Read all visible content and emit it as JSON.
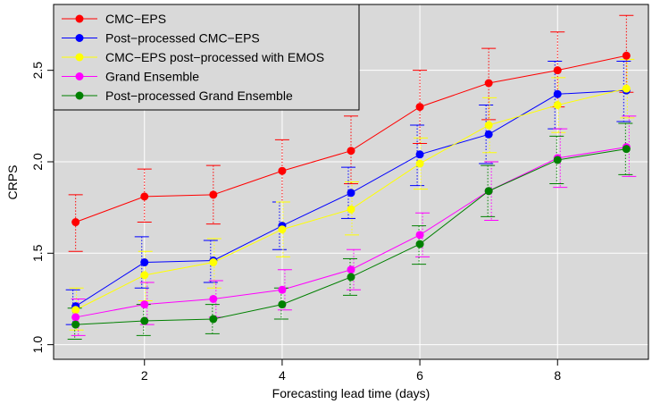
{
  "chart_data": {
    "type": "line",
    "title": "",
    "xlabel": "Forecasting lead time (days)",
    "ylabel": "CRPS",
    "xlim": [
      0.68,
      9.32
    ],
    "ylim": [
      0.92,
      2.86
    ],
    "x_ticks": [
      2,
      4,
      6,
      8
    ],
    "y_ticks": [
      1.0,
      1.5,
      2.0,
      2.5
    ],
    "x_tick_labels": [
      "2",
      "4",
      "6",
      "8"
    ],
    "y_tick_labels": [
      "1.0",
      "1.5",
      "2.0",
      "2.5"
    ],
    "grid": true,
    "background": "#d9d9d9",
    "legend_position": "top-left",
    "x": [
      1,
      2,
      3,
      4,
      5,
      6,
      7,
      8,
      9
    ],
    "series": [
      {
        "name": "CMC−EPS",
        "color": "#ff0000",
        "values": [
          1.67,
          1.81,
          1.82,
          1.95,
          2.06,
          2.3,
          2.43,
          2.5,
          2.58
        ],
        "lower": [
          1.51,
          1.67,
          1.66,
          1.78,
          1.88,
          2.1,
          2.23,
          2.3,
          2.38
        ],
        "upper": [
          1.82,
          1.96,
          1.98,
          2.12,
          2.25,
          2.5,
          2.62,
          2.71,
          2.8
        ]
      },
      {
        "name": "Post−processed CMC−EPS",
        "color": "#0000ff",
        "values": [
          1.21,
          1.45,
          1.46,
          1.65,
          1.83,
          2.04,
          2.15,
          2.37,
          2.39
        ],
        "lower": [
          1.11,
          1.31,
          1.34,
          1.52,
          1.69,
          1.87,
          1.99,
          2.18,
          2.22
        ],
        "upper": [
          1.3,
          1.59,
          1.57,
          1.78,
          1.97,
          2.2,
          2.31,
          2.55,
          2.55
        ]
      },
      {
        "name": "CMC−EPS post−processed with EMOS",
        "color": "#ffff00",
        "values": [
          1.19,
          1.38,
          1.45,
          1.63,
          1.74,
          1.99,
          2.2,
          2.31,
          2.4
        ],
        "lower": [
          1.08,
          1.24,
          1.31,
          1.48,
          1.6,
          1.85,
          2.05,
          2.16,
          2.24
        ],
        "upper": [
          1.31,
          1.51,
          1.58,
          1.78,
          1.89,
          2.13,
          2.35,
          2.46,
          2.56
        ]
      },
      {
        "name": "Grand Ensemble",
        "color": "#ff00ff",
        "values": [
          1.15,
          1.22,
          1.25,
          1.3,
          1.41,
          1.6,
          1.84,
          2.02,
          2.08
        ],
        "lower": [
          1.05,
          1.11,
          1.15,
          1.19,
          1.3,
          1.48,
          1.68,
          1.86,
          1.92
        ],
        "upper": [
          1.25,
          1.34,
          1.35,
          1.41,
          1.52,
          1.72,
          2.0,
          2.18,
          2.25
        ]
      },
      {
        "name": "Post−processed Grand Ensemble",
        "color": "#008000",
        "values": [
          1.11,
          1.13,
          1.14,
          1.22,
          1.37,
          1.55,
          1.84,
          2.01,
          2.07
        ],
        "lower": [
          1.03,
          1.05,
          1.06,
          1.14,
          1.27,
          1.44,
          1.7,
          1.88,
          1.93
        ],
        "upper": [
          1.2,
          1.22,
          1.22,
          1.31,
          1.47,
          1.65,
          1.98,
          2.14,
          2.21
        ]
      }
    ]
  }
}
